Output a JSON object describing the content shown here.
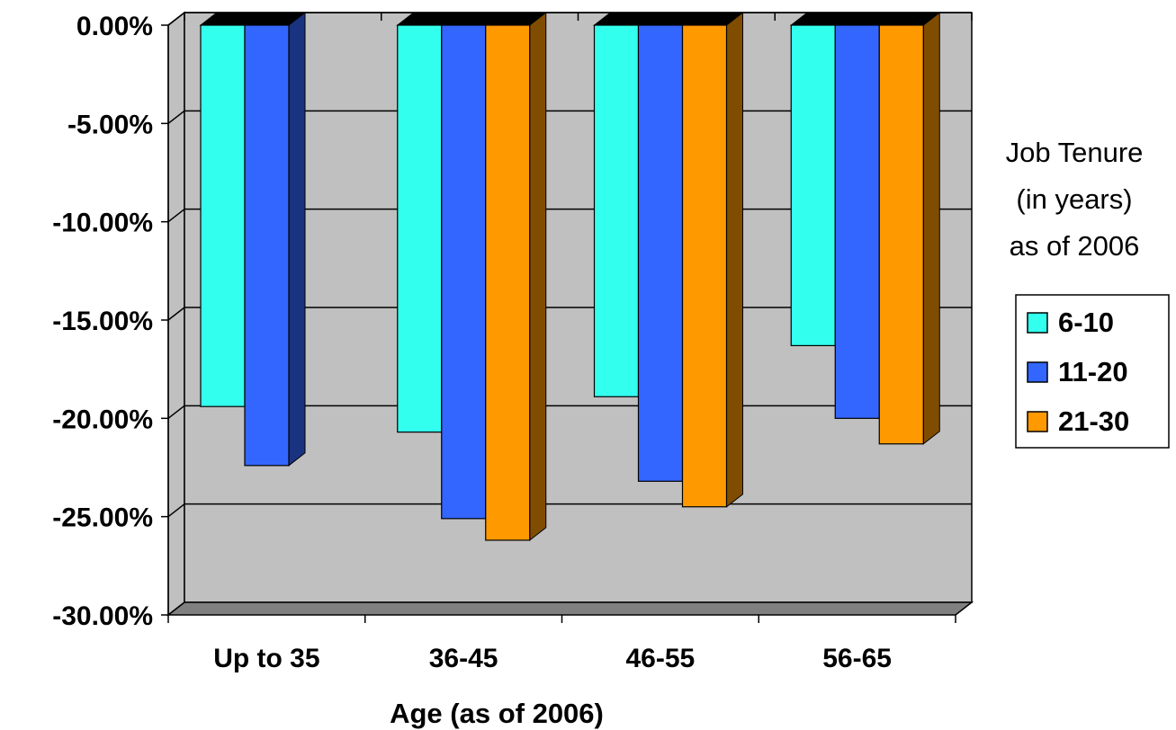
{
  "chart_data": {
    "type": "bar",
    "style": "3d-clustered-column",
    "categories": [
      "Up to 35",
      "36-45",
      "46-55",
      "56-65"
    ],
    "series": [
      {
        "name": "6-10",
        "color": "#33FFEE",
        "values": [
          -19.4,
          -20.7,
          -18.9,
          -16.3
        ]
      },
      {
        "name": "11-20",
        "color": "#3366FF",
        "values": [
          -22.4,
          -25.1,
          -23.2,
          -20.0
        ]
      },
      {
        "name": "21-30",
        "color": "#FF9900",
        "values": [
          null,
          -26.2,
          -24.5,
          -21.3
        ]
      }
    ],
    "ylim": [
      -30,
      0
    ],
    "yticks": [
      0,
      -5,
      -10,
      -15,
      -20,
      -25,
      -30
    ],
    "ytick_labels": [
      "0.00%",
      "-5.00%",
      "-10.00%",
      "-15.00%",
      "-20.00%",
      "-25.00%",
      "-30.00%"
    ],
    "xlabel": "Age (as of 2006)",
    "ylabel": "",
    "legend_title": [
      "Job Tenure",
      "(in years)",
      "as of 2006"
    ],
    "legend_position": "right",
    "grid": true,
    "plot_background": "#C0C0C0"
  }
}
